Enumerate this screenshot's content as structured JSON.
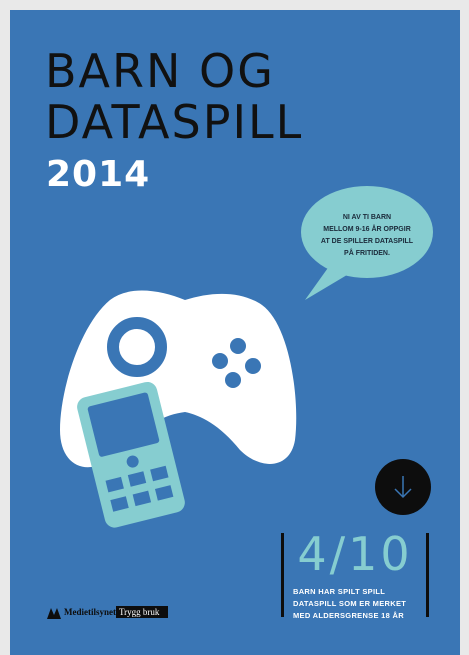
{
  "title": {
    "lines": [
      "BARN OG",
      "DATASPILL"
    ],
    "year": "2014"
  },
  "bubble": {
    "lines": [
      "NI AV TI BARN",
      "MELLOM 9-16 ÅR OPPGIR",
      "AT DE SPILLER DATASPILL",
      "PÅ FRITIDEN."
    ]
  },
  "stat": {
    "value": "4/10",
    "lines": [
      "BARN HAR SPILT SPILL",
      "DATASPILL SOM ER MERKET",
      "MED ALDERSGRENSE 18 ÅR"
    ]
  },
  "logos": {
    "publisher": "Medietilsynet",
    "brand": "Trygg bruk"
  }
}
